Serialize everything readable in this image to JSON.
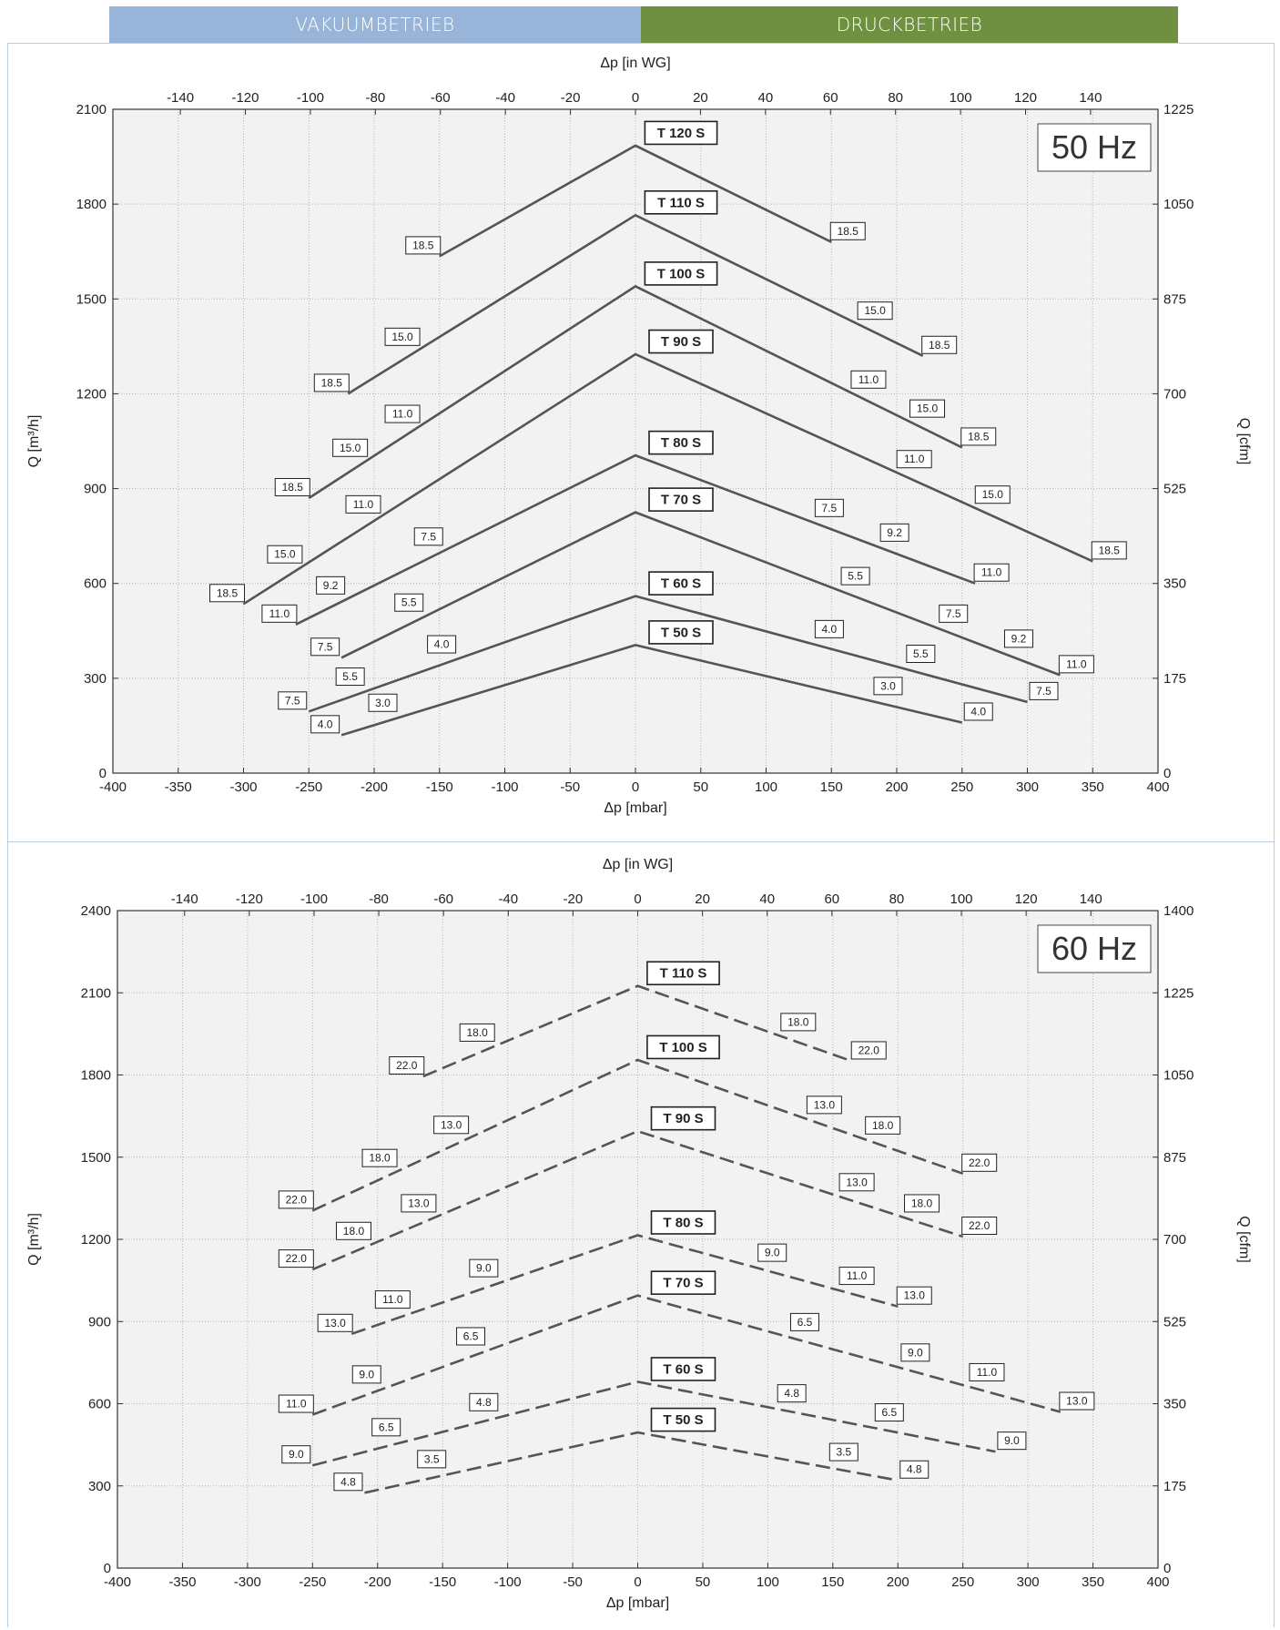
{
  "header": {
    "vacuum_label": "VAKUUMBETRIEB",
    "pressure_label": "DRUCKBETRIEB"
  },
  "colors": {
    "vacuum": "#98b4d8",
    "pressure": "#6f9040",
    "line": "#555555",
    "plot_bg": "#f2f2f2",
    "grid": "#b5b5b5"
  },
  "chart_data": [
    {
      "type": "line",
      "frequency_label": "50 Hz",
      "line_style": "solid",
      "xlabel": "Δp [mbar]",
      "x2label": "Δp [in WG]",
      "ylabel": "Q [m³/h]",
      "y2label": "Q [cfm]",
      "xlim": [
        -400,
        400
      ],
      "ylim": [
        0,
        2100
      ],
      "xticks": [
        "-400",
        "-350",
        "-300",
        "-250",
        "-200",
        "-150",
        "-100",
        "-50",
        "0",
        "50",
        "100",
        "150",
        "200",
        "250",
        "300",
        "350",
        "400"
      ],
      "yticks": [
        "0",
        "300",
        "600",
        "900",
        "1200",
        "1500",
        "1800",
        "2100"
      ],
      "x2ticks": [
        "-140",
        "-120",
        "-100",
        "-80",
        "-60",
        "-40",
        "-20",
        "0",
        "20",
        "40",
        "60",
        "80",
        "100",
        "120",
        "140"
      ],
      "y2ticks": [
        "0",
        "175",
        "350",
        "525",
        "700",
        "875",
        "1050",
        "1225"
      ],
      "grid": true,
      "series": [
        {
          "name": "T 120 S",
          "peak": 1985,
          "vac": {
            "x": -150,
            "y": 1635,
            "label": "18.5",
            "labels": []
          },
          "press": {
            "x": 150,
            "y": 1680,
            "label": "18.5",
            "labels": []
          }
        },
        {
          "name": "T 110 S",
          "peak": 1765,
          "vac": {
            "x": -220,
            "y": 1200,
            "label": "18.5",
            "labels": [
              {
                "x": -170,
                "text": "15.0"
              }
            ]
          },
          "press": {
            "x": 220,
            "y": 1320,
            "label": "18.5",
            "labels": [
              {
                "x": 175,
                "text": "15.0"
              }
            ]
          }
        },
        {
          "name": "T 100 S",
          "peak": 1540,
          "vac": {
            "x": -250,
            "y": 870,
            "label": "18.5",
            "labels": [
              {
                "x": -210,
                "text": "15.0"
              },
              {
                "x": -170,
                "text": "11.0"
              }
            ]
          },
          "press": {
            "x": 250,
            "y": 1030,
            "label": "18.5",
            "labels": [
              {
                "x": 170,
                "text": "11.0"
              },
              {
                "x": 215,
                "text": "15.0"
              }
            ]
          }
        },
        {
          "name": "T 90 S",
          "peak": 1325,
          "vac": {
            "x": -300,
            "y": 535,
            "label": "18.5",
            "labels": [
              {
                "x": -260,
                "text": "15.0"
              },
              {
                "x": -200,
                "text": "11.0"
              }
            ]
          },
          "press": {
            "x": 350,
            "y": 670,
            "label": "18.5",
            "labels": [
              {
                "x": 205,
                "text": "11.0"
              },
              {
                "x": 265,
                "text": "15.0"
              }
            ]
          }
        },
        {
          "name": "T 80 S",
          "peak": 1005,
          "vac": {
            "x": -260,
            "y": 470,
            "label": "11.0",
            "labels": [
              {
                "x": -225,
                "text": "9.2"
              },
              {
                "x": -150,
                "text": "7.5"
              }
            ]
          },
          "press": {
            "x": 260,
            "y": 600,
            "label": "11.0",
            "labels": [
              {
                "x": 140,
                "text": "7.5"
              },
              {
                "x": 190,
                "text": "9.2"
              }
            ]
          }
        },
        {
          "name": "T 70 S",
          "peak": 825,
          "vac": {
            "x": -225,
            "y": 365,
            "label": "7.5",
            "labels": [
              {
                "x": -165,
                "text": "5.5"
              }
            ]
          },
          "press": {
            "x": 325,
            "y": 310,
            "label": "11.0",
            "labels": [
              {
                "x": 160,
                "text": "5.5"
              },
              {
                "x": 235,
                "text": "7.5"
              },
              {
                "x": 285,
                "text": "9.2"
              }
            ]
          }
        },
        {
          "name": "T 60 S",
          "peak": 560,
          "vac": {
            "x": -250,
            "y": 195,
            "label": "7.5",
            "labels": [
              {
                "x": -210,
                "text": "5.5"
              },
              {
                "x": -140,
                "text": "4.0"
              }
            ]
          },
          "press": {
            "x": 300,
            "y": 225,
            "label": "7.5",
            "labels": [
              {
                "x": 140,
                "text": "4.0"
              },
              {
                "x": 210,
                "text": "5.5"
              }
            ]
          }
        },
        {
          "name": "T 50 S",
          "peak": 405,
          "vac": {
            "x": -225,
            "y": 120,
            "label": "4.0",
            "labels": [
              {
                "x": -185,
                "text": "3.0"
              }
            ]
          },
          "press": {
            "x": 250,
            "y": 160,
            "label": "4.0",
            "labels": [
              {
                "x": 185,
                "text": "3.0"
              }
            ]
          }
        }
      ]
    },
    {
      "type": "line",
      "frequency_label": "60 Hz",
      "line_style": "dashed",
      "xlabel": "Δp [mbar]",
      "x2label": "Δp [in WG]",
      "ylabel": "Q [m³/h]",
      "y2label": "Q [cfm]",
      "xlim": [
        -400,
        400
      ],
      "ylim": [
        0,
        2400
      ],
      "xticks": [
        "-400",
        "-350",
        "-300",
        "-250",
        "-200",
        "-150",
        "-100",
        "-50",
        "0",
        "50",
        "100",
        "150",
        "200",
        "250",
        "300",
        "350",
        "400"
      ],
      "yticks": [
        "0",
        "300",
        "600",
        "900",
        "1200",
        "1500",
        "1800",
        "2100",
        "2400"
      ],
      "x2ticks": [
        "-140",
        "-120",
        "-100",
        "-80",
        "-60",
        "-40",
        "-20",
        "0",
        "20",
        "40",
        "60",
        "80",
        "100",
        "120",
        "140"
      ],
      "y2ticks": [
        "0",
        "175",
        "350",
        "525",
        "700",
        "875",
        "1050",
        "1225",
        "1400"
      ],
      "grid": true,
      "series": [
        {
          "name": "T 110 S",
          "peak": 2125,
          "vac": {
            "x": -165,
            "y": 1795,
            "label": "22.0",
            "labels": [
              {
                "x": -115,
                "text": "18.0"
              }
            ]
          },
          "press": {
            "x": 165,
            "y": 1850,
            "label": "22.0",
            "labels": [
              {
                "x": 115,
                "text": "18.0"
              }
            ]
          }
        },
        {
          "name": "T 100 S",
          "peak": 1855,
          "vac": {
            "x": -250,
            "y": 1305,
            "label": "22.0",
            "labels": [
              {
                "x": -190,
                "text": "18.0"
              },
              {
                "x": -135,
                "text": "13.0"
              }
            ]
          },
          "press": {
            "x": 250,
            "y": 1440,
            "label": "22.0",
            "labels": [
              {
                "x": 135,
                "text": "13.0"
              },
              {
                "x": 180,
                "text": "18.0"
              }
            ]
          }
        },
        {
          "name": "T 90 S",
          "peak": 1595,
          "vac": {
            "x": -250,
            "y": 1090,
            "label": "22.0",
            "labels": [
              {
                "x": -210,
                "text": "18.0"
              },
              {
                "x": -160,
                "text": "13.0"
              }
            ]
          },
          "press": {
            "x": 250,
            "y": 1210,
            "label": "22.0",
            "labels": [
              {
                "x": 160,
                "text": "13.0"
              },
              {
                "x": 210,
                "text": "18.0"
              }
            ]
          }
        },
        {
          "name": "T 80 S",
          "peak": 1215,
          "vac": {
            "x": -220,
            "y": 855,
            "label": "13.0",
            "labels": [
              {
                "x": -180,
                "text": "11.0"
              },
              {
                "x": -110,
                "text": "9.0"
              }
            ]
          },
          "press": {
            "x": 200,
            "y": 955,
            "label": "13.0",
            "labels": [
              {
                "x": 95,
                "text": "9.0"
              },
              {
                "x": 160,
                "text": "11.0"
              }
            ]
          }
        },
        {
          "name": "T 70 S",
          "peak": 995,
          "vac": {
            "x": -250,
            "y": 560,
            "label": "11.0",
            "labels": [
              {
                "x": -200,
                "text": "9.0"
              },
              {
                "x": -120,
                "text": "6.5"
              }
            ]
          },
          "press": {
            "x": 325,
            "y": 570,
            "label": "13.0",
            "labels": [
              {
                "x": 120,
                "text": "6.5"
              },
              {
                "x": 205,
                "text": "9.0"
              },
              {
                "x": 260,
                "text": "11.0"
              }
            ]
          }
        },
        {
          "name": "T 60 S",
          "peak": 680,
          "vac": {
            "x": -250,
            "y": 375,
            "label": "9.0",
            "labels": [
              {
                "x": -185,
                "text": "6.5"
              },
              {
                "x": -110,
                "text": "4.8"
              }
            ]
          },
          "press": {
            "x": 275,
            "y": 425,
            "label": "9.0",
            "labels": [
              {
                "x": 110,
                "text": "4.8"
              },
              {
                "x": 185,
                "text": "6.5"
              }
            ]
          }
        },
        {
          "name": "T 50 S",
          "peak": 495,
          "vac": {
            "x": -210,
            "y": 275,
            "label": "4.8",
            "labels": [
              {
                "x": -150,
                "text": "3.5"
              }
            ]
          },
          "press": {
            "x": 200,
            "y": 320,
            "label": "4.8",
            "labels": [
              {
                "x": 150,
                "text": "3.5"
              }
            ]
          }
        }
      ]
    }
  ]
}
